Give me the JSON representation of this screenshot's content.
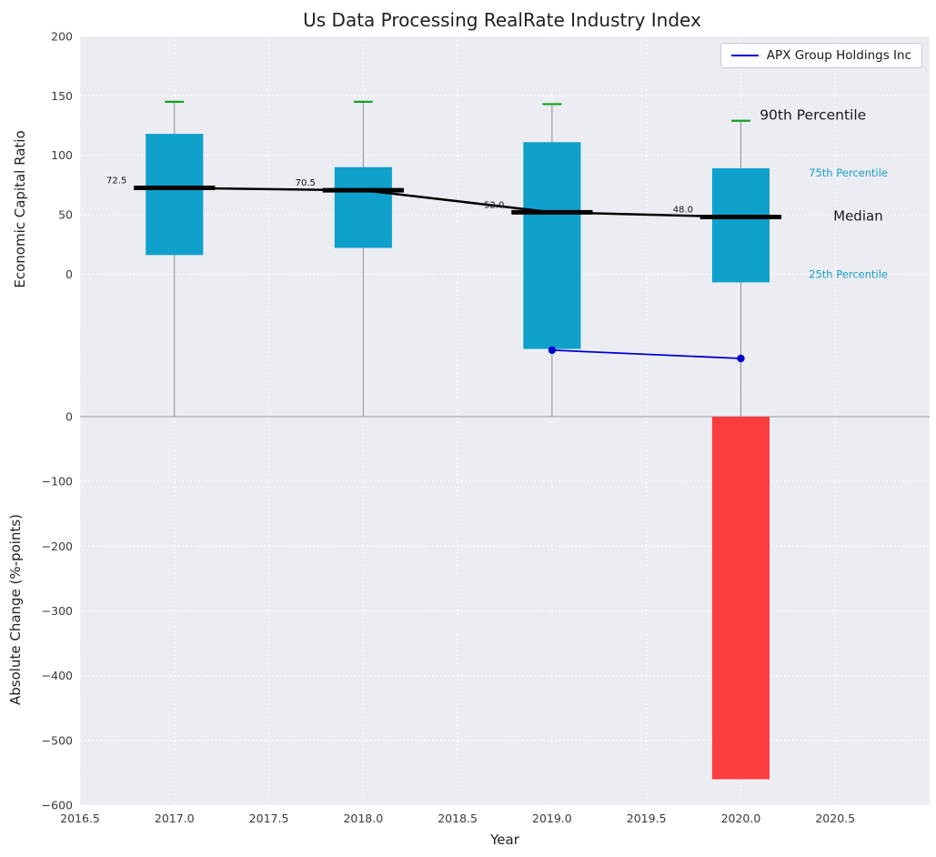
{
  "chart_data": {
    "type": "box",
    "title": "Us Data Processing RealRate Industry Index",
    "xlabel": "Year",
    "xlim": [
      2016.5,
      2021.0
    ],
    "x_ticks": [
      2016.5,
      2017.0,
      2017.5,
      2018.0,
      2018.5,
      2019.0,
      2019.5,
      2020.0,
      2020.5
    ],
    "x_tick_labels": [
      "2016.5",
      "2017.0",
      "2017.5",
      "2018.0",
      "2018.5",
      "2019.0",
      "2019.5",
      "2020.0",
      "2020.5"
    ],
    "legend": {
      "entries": [
        "APX Group Holdings Inc"
      ],
      "position": "upper right"
    },
    "panels": [
      {
        "ylabel": "Economic Capital Ratio",
        "ylim": [
          -120,
          200
        ],
        "y_ticks": [
          200,
          150,
          100,
          50,
          0
        ],
        "y_tick_labels": [
          "200",
          "150",
          "100",
          "50",
          "0"
        ],
        "grid": true,
        "boxes": {
          "years": [
            2017,
            2018,
            2019,
            2020
          ],
          "median": [
            72.5,
            70.5,
            52.0,
            48.0
          ],
          "median_labels": [
            "72.5",
            "70.5",
            "52.0",
            "48.0"
          ],
          "p75": [
            118,
            90,
            111,
            89
          ],
          "p25": [
            16,
            22,
            -63,
            -7
          ],
          "p90": [
            145,
            145,
            143,
            129
          ],
          "whisker_low": [
            -120,
            -120,
            -120,
            -120
          ]
        },
        "company_series": {
          "name": "APX Group Holdings Inc",
          "x": [
            2019,
            2020
          ],
          "y": [
            -64,
            -71
          ]
        },
        "annotations": [
          {
            "text": "90th Percentile",
            "x": 2020.1,
            "y": 134,
            "size": 15.5,
            "color": "#1a1a1a"
          },
          {
            "text": "75th Percentile",
            "x": 2020.36,
            "y": 85,
            "size": 11.5,
            "color": "#149fc8"
          },
          {
            "text": "Median",
            "x": 2020.49,
            "y": 49,
            "size": 15,
            "color": "#1a1a1a"
          },
          {
            "text": "25th Percentile",
            "x": 2020.36,
            "y": 0,
            "size": 11.5,
            "color": "#149fc8"
          }
        ]
      },
      {
        "ylabel": "Absolute Change (%-points)",
        "ylim": [
          -600,
          0
        ],
        "y_ticks": [
          0,
          -100,
          -200,
          -300,
          -400,
          -500,
          -600
        ],
        "y_tick_labels": [
          "0",
          "−100",
          "−200",
          "−300",
          "−400",
          "−500",
          "−600"
        ],
        "grid": true,
        "bars": {
          "x": [
            2020
          ],
          "values": [
            -560
          ],
          "color": "#fc3d3d"
        }
      }
    ],
    "colors": {
      "box_fill": "#0fa0cc",
      "bar_red": "#fc3d3d",
      "cap_green": "#15a01e",
      "median_line": "#000000",
      "company_line": "#0000cd",
      "whisker": "#8c8c8c",
      "panel_bg": "#ecedf3",
      "grid": "#ffffff",
      "divider": "#b3b4bd",
      "tick_text": "#3a3a3a"
    }
  }
}
